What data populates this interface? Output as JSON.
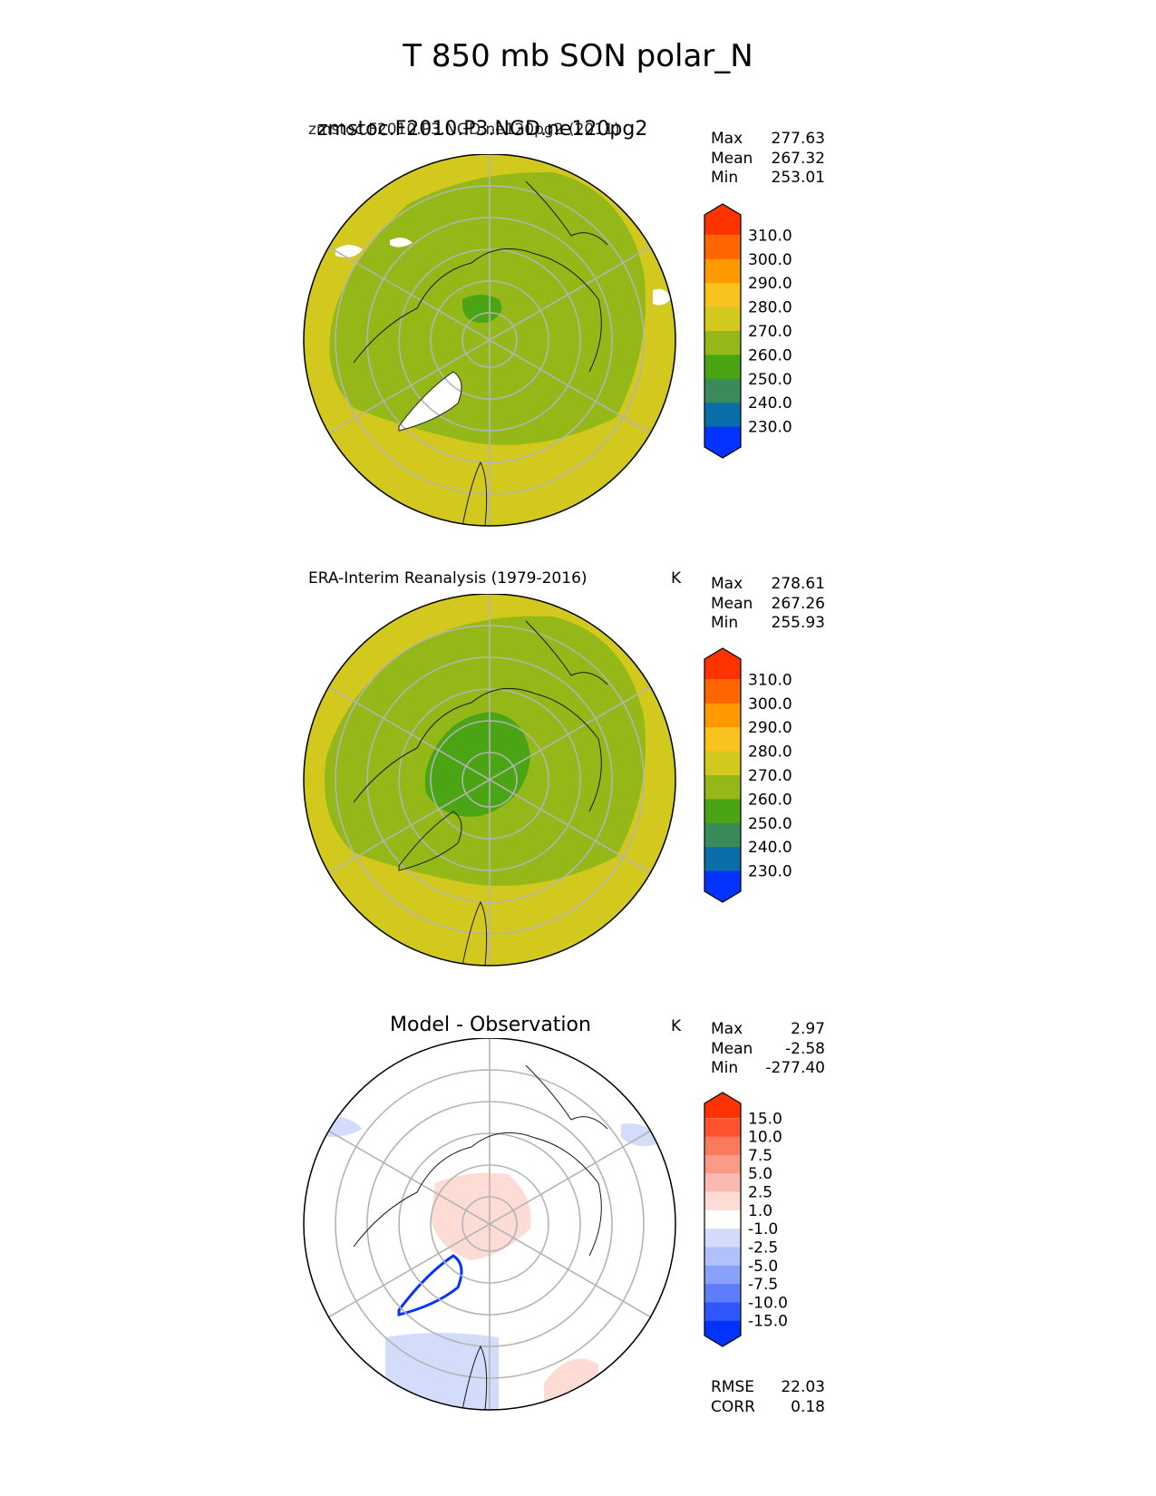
{
  "figure": {
    "title": "T 850 mb SON polar_N",
    "colors": {
      "warm_yellow": "#d2c81e",
      "olive_green": "#93b818",
      "green": "#4aa414",
      "land_outline": "#1a1a1a",
      "grid": "#b4b4b4",
      "missing": "#ffffff"
    }
  },
  "chart_data": [
    {
      "type": "heatmap",
      "projection": "north-polar-stereographic",
      "title": "zmstoc.F2010.P3.NGD.ne120pg2",
      "title_overlap": "zmstoc.F2010.P3.NGD.ne120pg2 (2011)",
      "units": "",
      "stats": [
        {
          "label": "Max",
          "value": "277.63"
        },
        {
          "label": "Mean",
          "value": "267.32"
        },
        {
          "label": "Min",
          "value": "253.01"
        }
      ],
      "colorbar": {
        "ticks": [
          "310.0",
          "300.0",
          "290.0",
          "280.0",
          "270.0",
          "260.0",
          "250.0",
          "240.0",
          "230.0"
        ],
        "colors": [
          "#ff3300",
          "#ff6600",
          "#ff9900",
          "#f9c21f",
          "#d2c81e",
          "#93b818",
          "#4aa414",
          "#3a8a5a",
          "#0a6ea8",
          "#0433ff"
        ]
      }
    },
    {
      "type": "heatmap",
      "projection": "north-polar-stereographic",
      "title": "ERA-Interim Reanalysis (1979-2016)",
      "units": "K",
      "stats": [
        {
          "label": "Max",
          "value": "278.61"
        },
        {
          "label": "Mean",
          "value": "267.26"
        },
        {
          "label": "Min",
          "value": "255.93"
        }
      ],
      "colorbar": {
        "ticks": [
          "310.0",
          "300.0",
          "290.0",
          "280.0",
          "270.0",
          "260.0",
          "250.0",
          "240.0",
          "230.0"
        ],
        "colors": [
          "#ff3300",
          "#ff6600",
          "#ff9900",
          "#f9c21f",
          "#d2c81e",
          "#93b818",
          "#4aa414",
          "#3a8a5a",
          "#0a6ea8",
          "#0433ff"
        ]
      }
    },
    {
      "type": "heatmap",
      "projection": "north-polar-stereographic",
      "title": "Model - Observation",
      "units": "K",
      "stats": [
        {
          "label": "Max",
          "value": "2.97"
        },
        {
          "label": "Mean",
          "value": "-2.58"
        },
        {
          "label": "Min",
          "value": "-277.40"
        }
      ],
      "metrics": [
        {
          "label": "RMSE",
          "value": "22.03"
        },
        {
          "label": "CORR",
          "value": "0.18"
        }
      ],
      "colorbar": {
        "ticks": [
          "15.0",
          "10.0",
          "7.5",
          "5.0",
          "2.5",
          "1.0",
          "-1.0",
          "-2.5",
          "-5.0",
          "-7.5",
          "-10.0",
          "-15.0"
        ],
        "colors": [
          "#ff3300",
          "#ff5230",
          "#fb7a5e",
          "#fb9a86",
          "#fbbab0",
          "#fddcd6",
          "#ffffff",
          "#d4dcfb",
          "#b2c1fb",
          "#8aa1fb",
          "#5e7dfb",
          "#3057fb",
          "#0433ff"
        ]
      }
    }
  ]
}
